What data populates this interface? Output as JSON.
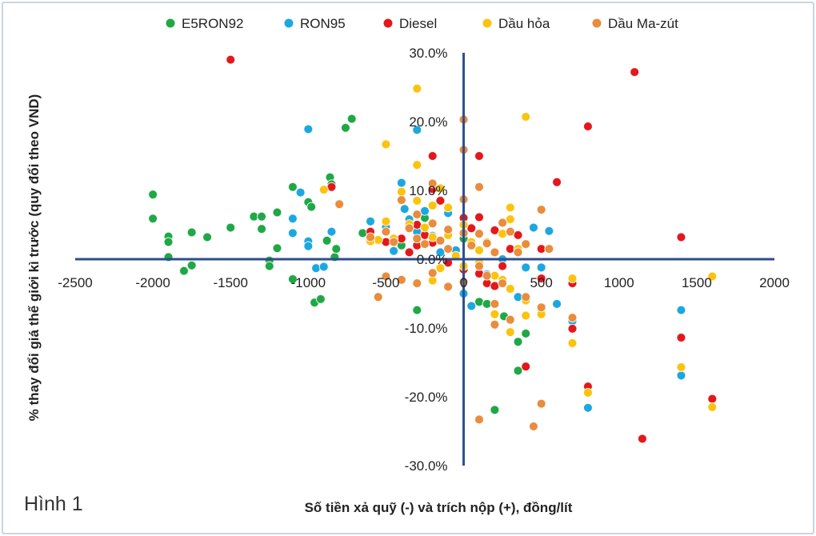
{
  "figure_label": "Hình 1",
  "chart_data": {
    "type": "scatter",
    "xlabel": "Số tiền xả quỹ (-) và trích nộp (+), đồng/lít",
    "ylabel": "% thay đổi giá thế giới kì trước (quy đổi theo VND)",
    "xlim": [
      -2500,
      2000
    ],
    "ylim": [
      -30,
      30
    ],
    "x_ticks": [
      -2500,
      -2000,
      -1500,
      -1000,
      -500,
      0,
      500,
      1000,
      1500,
      2000
    ],
    "y_ticks": [
      -30,
      -20,
      -10,
      0,
      10,
      20,
      30
    ],
    "x_tick_labels": [
      "-2500",
      "-2000",
      "-1500",
      "-1000",
      "-500",
      "0",
      "500",
      "1000",
      "1500",
      "2000"
    ],
    "y_tick_labels": [
      "-30.0%",
      "-20.0%",
      "-10.0%",
      "0.0%",
      "10.0%",
      "20.0%",
      "30.0%"
    ],
    "legend_position": "top",
    "series": [
      {
        "name": "E5RON92",
        "color": "#1fa846",
        "points": [
          [
            -2000,
            9.4
          ],
          [
            -2000,
            5.9
          ],
          [
            -1900,
            3.3
          ],
          [
            -1900,
            2.5
          ],
          [
            -1900,
            0.3
          ],
          [
            -1800,
            -1.7
          ],
          [
            -1750,
            3.9
          ],
          [
            -1750,
            -0.9
          ],
          [
            -1650,
            3.2
          ],
          [
            -1500,
            4.6
          ],
          [
            -1350,
            6.2
          ],
          [
            -1300,
            6.2
          ],
          [
            -1300,
            4.4
          ],
          [
            -1250,
            -0.2
          ],
          [
            -1250,
            -1.0
          ],
          [
            -1200,
            6.8
          ],
          [
            -1200,
            1.6
          ],
          [
            -1100,
            10.5
          ],
          [
            -1100,
            -2.9
          ],
          [
            -1000,
            8.3
          ],
          [
            -980,
            7.6
          ],
          [
            -960,
            -6.3
          ],
          [
            -920,
            -5.8
          ],
          [
            -880,
            2.7
          ],
          [
            -860,
            11.9
          ],
          [
            -850,
            10.9
          ],
          [
            -830,
            0.3
          ],
          [
            -820,
            1.5
          ],
          [
            -760,
            19.1
          ],
          [
            -720,
            20.4
          ],
          [
            -650,
            3.8
          ],
          [
            -600,
            2.7
          ],
          [
            -300,
            -7.4
          ],
          [
            -250,
            6.0
          ],
          [
            200,
            -21.9
          ],
          [
            260,
            -8.3
          ],
          [
            350,
            -16.2
          ],
          [
            400,
            -10.8
          ],
          [
            100,
            -6.2
          ],
          [
            150,
            -6.5
          ],
          [
            350,
            -12.0
          ],
          [
            300,
            4.1
          ],
          [
            -400,
            2.0
          ],
          [
            -320,
            4.5
          ],
          [
            0,
            3.0
          ],
          [
            200,
            1.0
          ]
        ]
      },
      {
        "name": "RON95",
        "color": "#1da7e0",
        "points": [
          [
            -1000,
            18.9
          ],
          [
            -1050,
            9.7
          ],
          [
            -1100,
            5.9
          ],
          [
            -1100,
            3.8
          ],
          [
            -1000,
            2.6
          ],
          [
            -1000,
            1.9
          ],
          [
            -950,
            -1.3
          ],
          [
            -900,
            -1.1
          ],
          [
            -850,
            4.0
          ],
          [
            -600,
            5.5
          ],
          [
            -500,
            4.7
          ],
          [
            -450,
            1.2
          ],
          [
            -400,
            11.1
          ],
          [
            -380,
            7.3
          ],
          [
            -350,
            5.8
          ],
          [
            -300,
            18.8
          ],
          [
            -300,
            4.0
          ],
          [
            -200,
            3.4
          ],
          [
            -100,
            6.7
          ],
          [
            -50,
            1.3
          ],
          [
            0,
            -5.0
          ],
          [
            50,
            -6.8
          ],
          [
            150,
            -2.2
          ],
          [
            250,
            0.0
          ],
          [
            400,
            -1.2
          ],
          [
            450,
            4.6
          ],
          [
            500,
            -1.2
          ],
          [
            550,
            4.1
          ],
          [
            600,
            -6.5
          ],
          [
            700,
            -9.0
          ],
          [
            800,
            -21.6
          ],
          [
            1400,
            -7.4
          ],
          [
            1400,
            -16.9
          ],
          [
            350,
            -5.5
          ],
          [
            -150,
            1.0
          ],
          [
            -250,
            7.0
          ]
        ]
      },
      {
        "name": "Diesel",
        "color": "#e4171b",
        "points": [
          [
            -1500,
            29.0
          ],
          [
            1100,
            27.2
          ],
          [
            800,
            19.3
          ],
          [
            -200,
            15.0
          ],
          [
            100,
            15.0
          ],
          [
            600,
            11.2
          ],
          [
            -850,
            10.5
          ],
          [
            -400,
            9.8
          ],
          [
            -200,
            10.2
          ],
          [
            -150,
            8.5
          ],
          [
            0,
            6.0
          ],
          [
            100,
            6.1
          ],
          [
            -600,
            4.0
          ],
          [
            -500,
            2.5
          ],
          [
            -400,
            3.0
          ],
          [
            -300,
            2.0
          ],
          [
            -250,
            3.5
          ],
          [
            -200,
            2.4
          ],
          [
            200,
            4.2
          ],
          [
            300,
            1.5
          ],
          [
            350,
            3.5
          ],
          [
            500,
            1.5
          ],
          [
            1400,
            3.2
          ],
          [
            -100,
            -0.5
          ],
          [
            0,
            -1.5
          ],
          [
            100,
            -2.1
          ],
          [
            150,
            -3.5
          ],
          [
            200,
            -3.9
          ],
          [
            500,
            -2.8
          ],
          [
            700,
            -3.5
          ],
          [
            700,
            -10.1
          ],
          [
            800,
            -18.5
          ],
          [
            1400,
            -11.4
          ],
          [
            1600,
            -20.3
          ],
          [
            1150,
            -26.1
          ],
          [
            400,
            -15.6
          ],
          [
            -300,
            5.0
          ],
          [
            -350,
            1.0
          ],
          [
            50,
            4.5
          ],
          [
            250,
            -1.0
          ]
        ]
      },
      {
        "name": "Dầu hỏa",
        "color": "#fbc30e",
        "points": [
          [
            -300,
            24.8
          ],
          [
            -300,
            13.7
          ],
          [
            -500,
            16.7
          ],
          [
            -900,
            10.1
          ],
          [
            -400,
            9.8
          ],
          [
            -300,
            8.5
          ],
          [
            -200,
            7.8
          ],
          [
            -150,
            10.3
          ],
          [
            -100,
            7.5
          ],
          [
            -500,
            5.5
          ],
          [
            -550,
            2.8
          ],
          [
            -600,
            2.6
          ],
          [
            -450,
            3.0
          ],
          [
            -350,
            5.1
          ],
          [
            -250,
            4.6
          ],
          [
            -200,
            3.2
          ],
          [
            -100,
            3.5
          ],
          [
            0,
            5.0
          ],
          [
            50,
            2.5
          ],
          [
            100,
            1.3
          ],
          [
            150,
            2.5
          ],
          [
            250,
            3.7
          ],
          [
            300,
            5.8
          ],
          [
            300,
            7.5
          ],
          [
            400,
            20.7
          ],
          [
            -500,
            -2.5
          ],
          [
            -300,
            -3.5
          ],
          [
            -200,
            -3.1
          ],
          [
            -150,
            -1.3
          ],
          [
            0,
            -1.0
          ],
          [
            100,
            -0.5
          ],
          [
            200,
            -2.4
          ],
          [
            250,
            -3.0
          ],
          [
            300,
            -4.3
          ],
          [
            400,
            -6.0
          ],
          [
            500,
            -7.5
          ],
          [
            300,
            -10.6
          ],
          [
            200,
            -8.0
          ],
          [
            400,
            -8.2
          ],
          [
            500,
            -8.0
          ],
          [
            700,
            -2.8
          ],
          [
            700,
            -12.2
          ],
          [
            800,
            -19.4
          ],
          [
            1400,
            -15.7
          ],
          [
            1600,
            -21.5
          ],
          [
            1600,
            -2.5
          ],
          [
            -50,
            0.5
          ],
          [
            350,
            1.5
          ]
        ]
      },
      {
        "name": "Dầu Ma-zút",
        "color": "#e98c3c",
        "points": [
          [
            0,
            20.3
          ],
          [
            0,
            15.9
          ],
          [
            -200,
            11.0
          ],
          [
            -400,
            8.6
          ],
          [
            -300,
            6.5
          ],
          [
            -200,
            5.2
          ],
          [
            -100,
            4.3
          ],
          [
            0,
            8.7
          ],
          [
            100,
            10.5
          ],
          [
            -800,
            8.0
          ],
          [
            -600,
            3.2
          ],
          [
            -500,
            4.0
          ],
          [
            -450,
            2.5
          ],
          [
            -350,
            4.5
          ],
          [
            -300,
            3.0
          ],
          [
            -250,
            2.2
          ],
          [
            -150,
            2.7
          ],
          [
            -100,
            1.5
          ],
          [
            0,
            3.8
          ],
          [
            50,
            2.0
          ],
          [
            100,
            3.7
          ],
          [
            150,
            2.3
          ],
          [
            200,
            1.0
          ],
          [
            250,
            5.3
          ],
          [
            300,
            4.0
          ],
          [
            350,
            1.0
          ],
          [
            400,
            2.2
          ],
          [
            500,
            7.2
          ],
          [
            550,
            1.5
          ],
          [
            -500,
            -2.5
          ],
          [
            -400,
            -3.0
          ],
          [
            -300,
            -3.5
          ],
          [
            -200,
            -2.0
          ],
          [
            -100,
            -4.0
          ],
          [
            0,
            -3.3
          ],
          [
            100,
            -1.0
          ],
          [
            150,
            -2.4
          ],
          [
            200,
            -6.5
          ],
          [
            300,
            -8.8
          ],
          [
            400,
            -5.5
          ],
          [
            500,
            -7.0
          ],
          [
            500,
            -21.0
          ],
          [
            450,
            -24.3
          ],
          [
            100,
            -23.3
          ],
          [
            700,
            -8.5
          ],
          [
            200,
            -9.5
          ],
          [
            250,
            -3.5
          ],
          [
            -550,
            -5.5
          ]
        ]
      }
    ]
  }
}
